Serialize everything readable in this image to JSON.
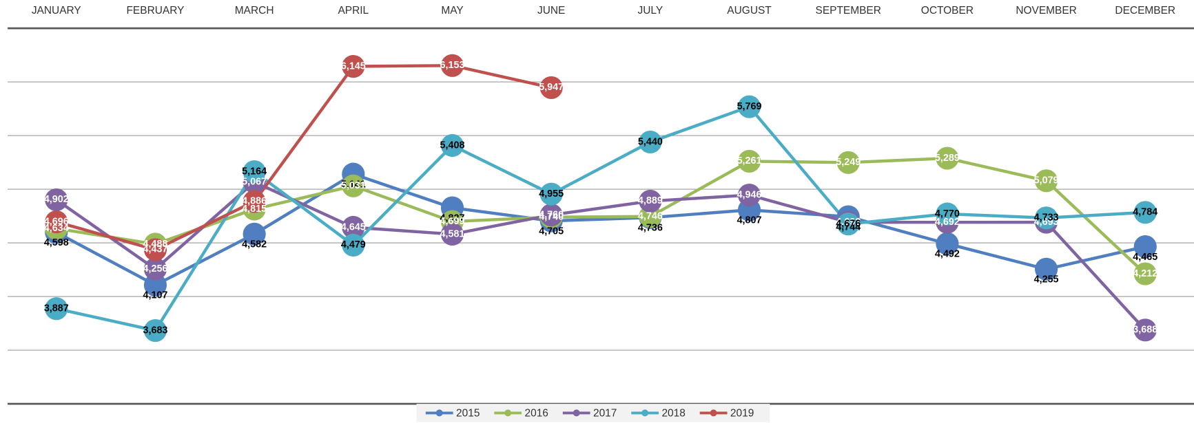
{
  "chart_data": {
    "type": "line",
    "categories": [
      "JANUARY",
      "FEBRUARY",
      "MARCH",
      "APRIL",
      "MAY",
      "JUNE",
      "JULY",
      "AUGUST",
      "SEPTEMBER",
      "OCTOBER",
      "NOVEMBER",
      "DECEMBER"
    ],
    "series": [
      {
        "name": "2015",
        "color": "#4f7fc0",
        "values": [
          4598,
          4107,
          4582,
          5141,
          4827,
          4705,
          4736,
          4807,
          4744,
          4492,
          4255,
          4465
        ],
        "value_labels": [
          "4,598",
          "4,107",
          "4,582",
          "5,141",
          "4,827",
          "4,705",
          "4,736",
          "4,807",
          "4,744",
          "4,492",
          "4,255",
          "4,465"
        ]
      },
      {
        "name": "2016",
        "color": "#9bbb59",
        "values": [
          4634,
          4488,
          4815,
          5031,
          4699,
          4740,
          4746,
          5261,
          5249,
          5289,
          5079,
          4212
        ],
        "value_labels": [
          "4,634",
          "4,488",
          "4,815",
          "5,031",
          "4,699",
          "4,740",
          "4,746",
          "5,261",
          "5,249",
          "5,289",
          "5,079",
          "4,212"
        ]
      },
      {
        "name": "2017",
        "color": "#8064a2",
        "values": [
          4902,
          4256,
          5067,
          4645,
          4581,
          4760,
          4889,
          4946,
          4692,
          4692,
          4693,
          3688
        ],
        "value_labels": [
          "4,902",
          "4,256",
          "5,067",
          "4,645",
          "4,581",
          "4,760",
          "4,889",
          "4,946",
          "4,692",
          "4,692",
          "4,693",
          "3,688"
        ]
      },
      {
        "name": "2018",
        "color": "#4bacc6",
        "values": [
          3887,
          3683,
          5164,
          4479,
          5408,
          4955,
          5440,
          5769,
          4676,
          4770,
          4733,
          4784
        ],
        "value_labels": [
          "3,887",
          "3,683",
          "5,164",
          "4,479",
          "5,408",
          "4,955",
          "5,440",
          "5,769",
          "4,676",
          "4,770",
          "4,733",
          "4,784"
        ]
      },
      {
        "name": "2019",
        "color": "#c0504d",
        "values": [
          4696,
          4437,
          4886,
          6145,
          6153,
          5947,
          null,
          null,
          null,
          null,
          null,
          null
        ],
        "value_labels": [
          "4,696",
          "4,437",
          "4,886",
          "6,145",
          "6,153",
          "5,947",
          null,
          null,
          null,
          null,
          null,
          null
        ]
      }
    ],
    "ylim": [
      3000,
      6500
    ],
    "yticks": [
      3000,
      3500,
      4000,
      4500,
      5000,
      5500,
      6000,
      6500
    ],
    "grid": true,
    "legend": "bottom"
  }
}
